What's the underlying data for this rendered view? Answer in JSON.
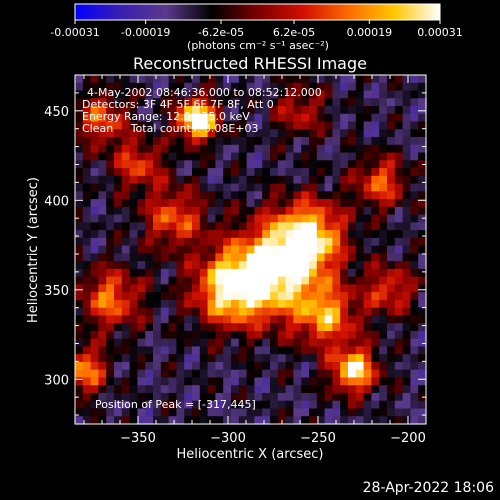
{
  "chart_data": {
    "type": "heatmap",
    "title": "Reconstructed RHESSI Image",
    "xlabel": "Heliocentric X (arcsec)",
    "ylabel": "Heliocentric Y (arcsec)",
    "xlim": [
      -385,
      -190
    ],
    "ylim": [
      275,
      470
    ],
    "xticks": [
      -350,
      -300,
      -250,
      -200
    ],
    "xtick_labels": [
      "−350",
      "−300",
      "−250",
      "−200"
    ],
    "yticks": [
      300,
      350,
      400,
      450
    ],
    "ytick_labels": [
      "300",
      "350",
      "400",
      "450"
    ],
    "colorbar": {
      "range": [
        -0.00031,
        0.00031
      ],
      "ticks": [
        -0.00031,
        -0.00019,
        -6.2e-05,
        6.2e-05,
        0.00019,
        0.00031
      ],
      "tick_labels": [
        "-0.00031",
        "-0.00019",
        "-6.2e-05",
        "6.2e-05",
        "0.00019",
        "0.00031"
      ],
      "unit_label": "(photons cm⁻² s⁻¹ asec⁻²)",
      "colors": [
        "#0000ff",
        "#3a1fb0",
        "#5a3a8a",
        "#000000",
        "#7a0000",
        "#d01000",
        "#ff6a00",
        "#ffc800",
        "#ffffff"
      ]
    },
    "annotations": [
      "4-May-2002 08:46:36.000 to 08:52:12.000",
      "Detectors: 3F 4F 5F 6F 7F 8F, Att 0",
      "Energy Range: 12.0 - 25.0 keV",
      "Clean     Total counts: 3.08E+03"
    ],
    "peak_label": "Position of Peak = [-317,445]",
    "sources": [
      {
        "x": -317,
        "y": 445,
        "sigma": 8,
        "amp": 1.0
      },
      {
        "x": -275,
        "y": 360,
        "sigma": 18,
        "amp": 0.85
      },
      {
        "x": -255,
        "y": 380,
        "sigma": 14,
        "amp": 0.75
      },
      {
        "x": -300,
        "y": 350,
        "sigma": 14,
        "amp": 0.7
      },
      {
        "x": -245,
        "y": 335,
        "sigma": 12,
        "amp": 0.6
      },
      {
        "x": -230,
        "y": 305,
        "sigma": 9,
        "amp": 0.8
      },
      {
        "x": -365,
        "y": 345,
        "sigma": 12,
        "amp": 0.55
      },
      {
        "x": -380,
        "y": 305,
        "sigma": 9,
        "amp": 0.6
      },
      {
        "x": -330,
        "y": 390,
        "sigma": 12,
        "amp": 0.5
      },
      {
        "x": -215,
        "y": 410,
        "sigma": 10,
        "amp": 0.5
      },
      {
        "x": -350,
        "y": 420,
        "sigma": 10,
        "amp": 0.45
      },
      {
        "x": -210,
        "y": 350,
        "sigma": 10,
        "amp": 0.45
      },
      {
        "x": -370,
        "y": 445,
        "sigma": 10,
        "amp": 0.5
      },
      {
        "x": -260,
        "y": 450,
        "sigma": 10,
        "amp": 0.35
      }
    ]
  },
  "footer": {
    "timestamp": "28-Apr-2022 18:06"
  }
}
